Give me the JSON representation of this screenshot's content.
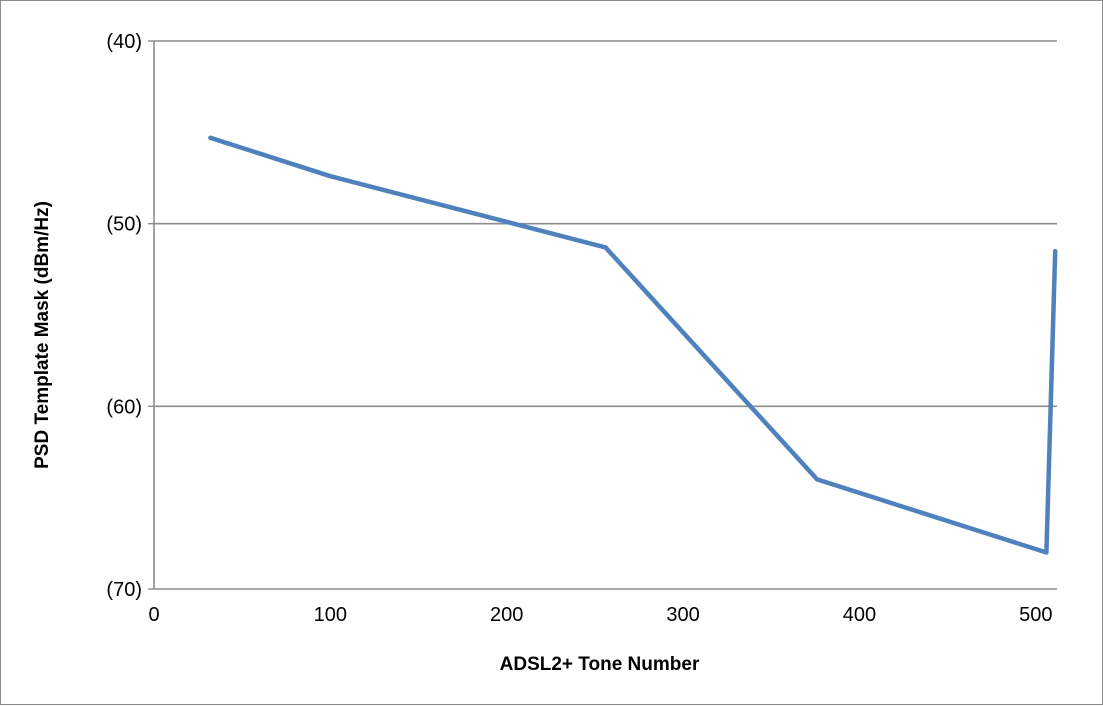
{
  "chart_data": {
    "type": "line",
    "xlabel": "ADSL2+ Tone Number",
    "ylabel": "PSD Template Mask (dBm/Hz)",
    "xlim": [
      0,
      512
    ],
    "ylim": [
      -70,
      -40
    ],
    "x_ticks": [
      0,
      100,
      200,
      300,
      400,
      500
    ],
    "x_tick_labels": [
      "0",
      "100",
      "200",
      "300",
      "400",
      "500"
    ],
    "y_ticks": [
      -40,
      -50,
      -60,
      -70
    ],
    "y_tick_labels": [
      "(40)",
      "(50)",
      "(60)",
      "(70)"
    ],
    "grid": "horizontal",
    "legend": "none",
    "series": [
      {
        "color": "#4f81bd",
        "x": [
          32,
          100,
          200,
          256,
          376,
          506,
          511
        ],
        "y": [
          -45.3,
          -47.4,
          -49.9,
          -51.3,
          -64.0,
          -68.0,
          -51.5
        ]
      }
    ]
  }
}
